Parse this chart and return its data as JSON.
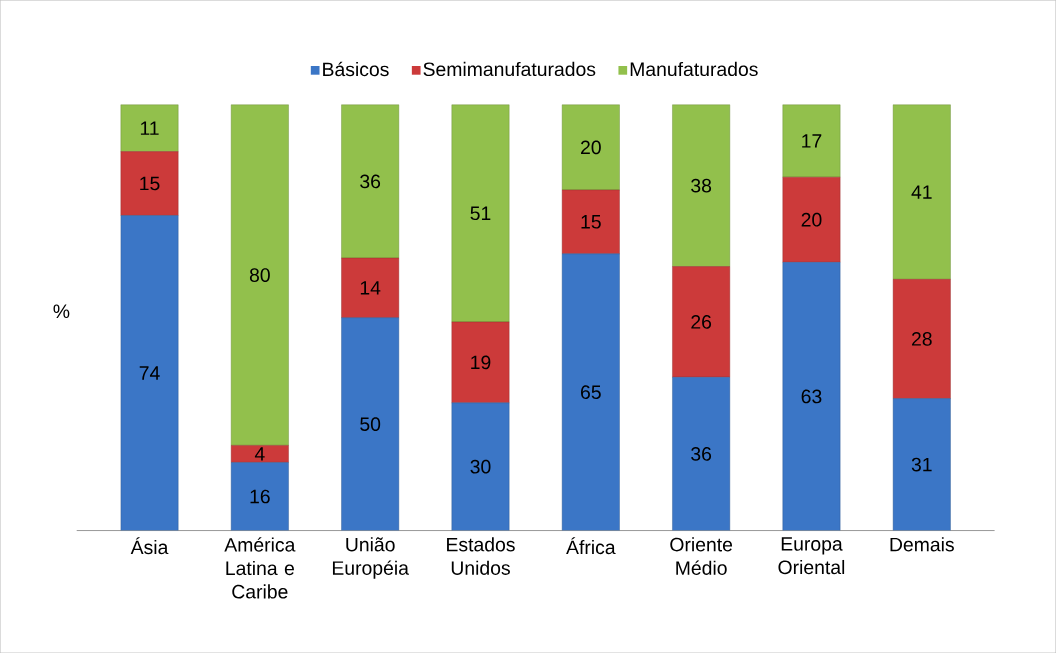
{
  "chart_data": {
    "type": "bar",
    "stacked": true,
    "ylabel": "%",
    "data_labels": true,
    "legend": "top",
    "categories": [
      "Ásia",
      "América Latina e Caribe",
      "União Européia",
      "Estados Unidos",
      "África",
      "Oriente Médio",
      "Europa Oriental",
      "Demais"
    ],
    "series": [
      {
        "name": "Básicos",
        "color": "#3b76c6",
        "values": [
          74,
          16,
          50,
          30,
          65,
          36,
          63,
          31
        ]
      },
      {
        "name": "Semimanufaturados",
        "color": "#cc3a3a",
        "values": [
          15,
          4,
          14,
          19,
          15,
          26,
          20,
          28
        ]
      },
      {
        "name": "Manufaturados",
        "color": "#92c04c",
        "values": [
          11,
          80,
          36,
          51,
          20,
          38,
          17,
          41
        ]
      }
    ]
  }
}
